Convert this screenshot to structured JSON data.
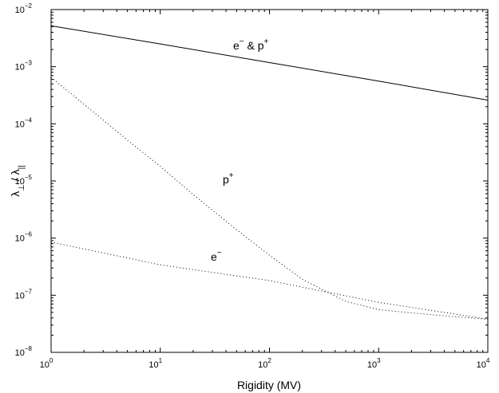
{
  "chart_data": {
    "type": "line",
    "xlabel": "Rigidity (MV)",
    "ylabel": "λ⊥ / λ||",
    "xscale": "log",
    "yscale": "log",
    "xlim": [
      1,
      10000
    ],
    "ylim": [
      1e-08,
      0.01
    ],
    "grid": false,
    "x_ticks": [
      {
        "base": "10",
        "exp": "0",
        "value": 1
      },
      {
        "base": "10",
        "exp": "1",
        "value": 10
      },
      {
        "base": "10",
        "exp": "2",
        "value": 100
      },
      {
        "base": "10",
        "exp": "3",
        "value": 1000
      },
      {
        "base": "10",
        "exp": "4",
        "value": 10000
      }
    ],
    "y_ticks": [
      {
        "base": "10",
        "exp": "−8",
        "value": 1e-08
      },
      {
        "base": "10",
        "exp": "−7",
        "value": 1e-07
      },
      {
        "base": "10",
        "exp": "−6",
        "value": 1e-06
      },
      {
        "base": "10",
        "exp": "−5",
        "value": 1e-05
      },
      {
        "base": "10",
        "exp": "−4",
        "value": 0.0001
      },
      {
        "base": "10",
        "exp": "−3",
        "value": 0.001
      },
      {
        "base": "10",
        "exp": "−2",
        "value": 0.01
      }
    ],
    "series": [
      {
        "label": "e⁻ & p⁺",
        "style": "solid",
        "x": [
          1,
          10,
          100,
          1000,
          10000
        ],
        "y": [
          0.0052,
          0.0025,
          0.00118,
          0.00056,
          0.00026
        ]
      },
      {
        "label": "p⁺",
        "style": "dotted",
        "x": [
          1,
          2,
          5,
          10,
          20,
          50,
          100,
          200,
          500,
          1000,
          2000,
          5000,
          10000
        ],
        "y": [
          0.00065,
          0.00022,
          5.2e-05,
          1.8e-05,
          5.8e-06,
          1.4e-06,
          5e-07,
          1.9e-07,
          7.8e-08,
          5.6e-08,
          4.9e-08,
          4.2e-08,
          3.8e-08
        ]
      },
      {
        "label": "e⁻",
        "style": "dotted",
        "x": [
          1,
          10,
          100,
          1000,
          10000
        ],
        "y": [
          8.5e-07,
          3.4e-07,
          1.8e-07,
          7.5e-08,
          3.8e-08
        ]
      }
    ],
    "annotations": [
      {
        "base": "e",
        "sup1": "−",
        "mid": " & p",
        "sup2": "+",
        "series": 0
      },
      {
        "base": "p",
        "sup1": "+",
        "series": 1
      },
      {
        "base": "e",
        "sup1": "−",
        "series": 2
      }
    ],
    "xlabel_text": "Rigidity (MV)",
    "ylabel_parts": {
      "l1": "λ",
      "sub1": "⊥",
      "mid": " / λ",
      "sub2": "||"
    }
  }
}
